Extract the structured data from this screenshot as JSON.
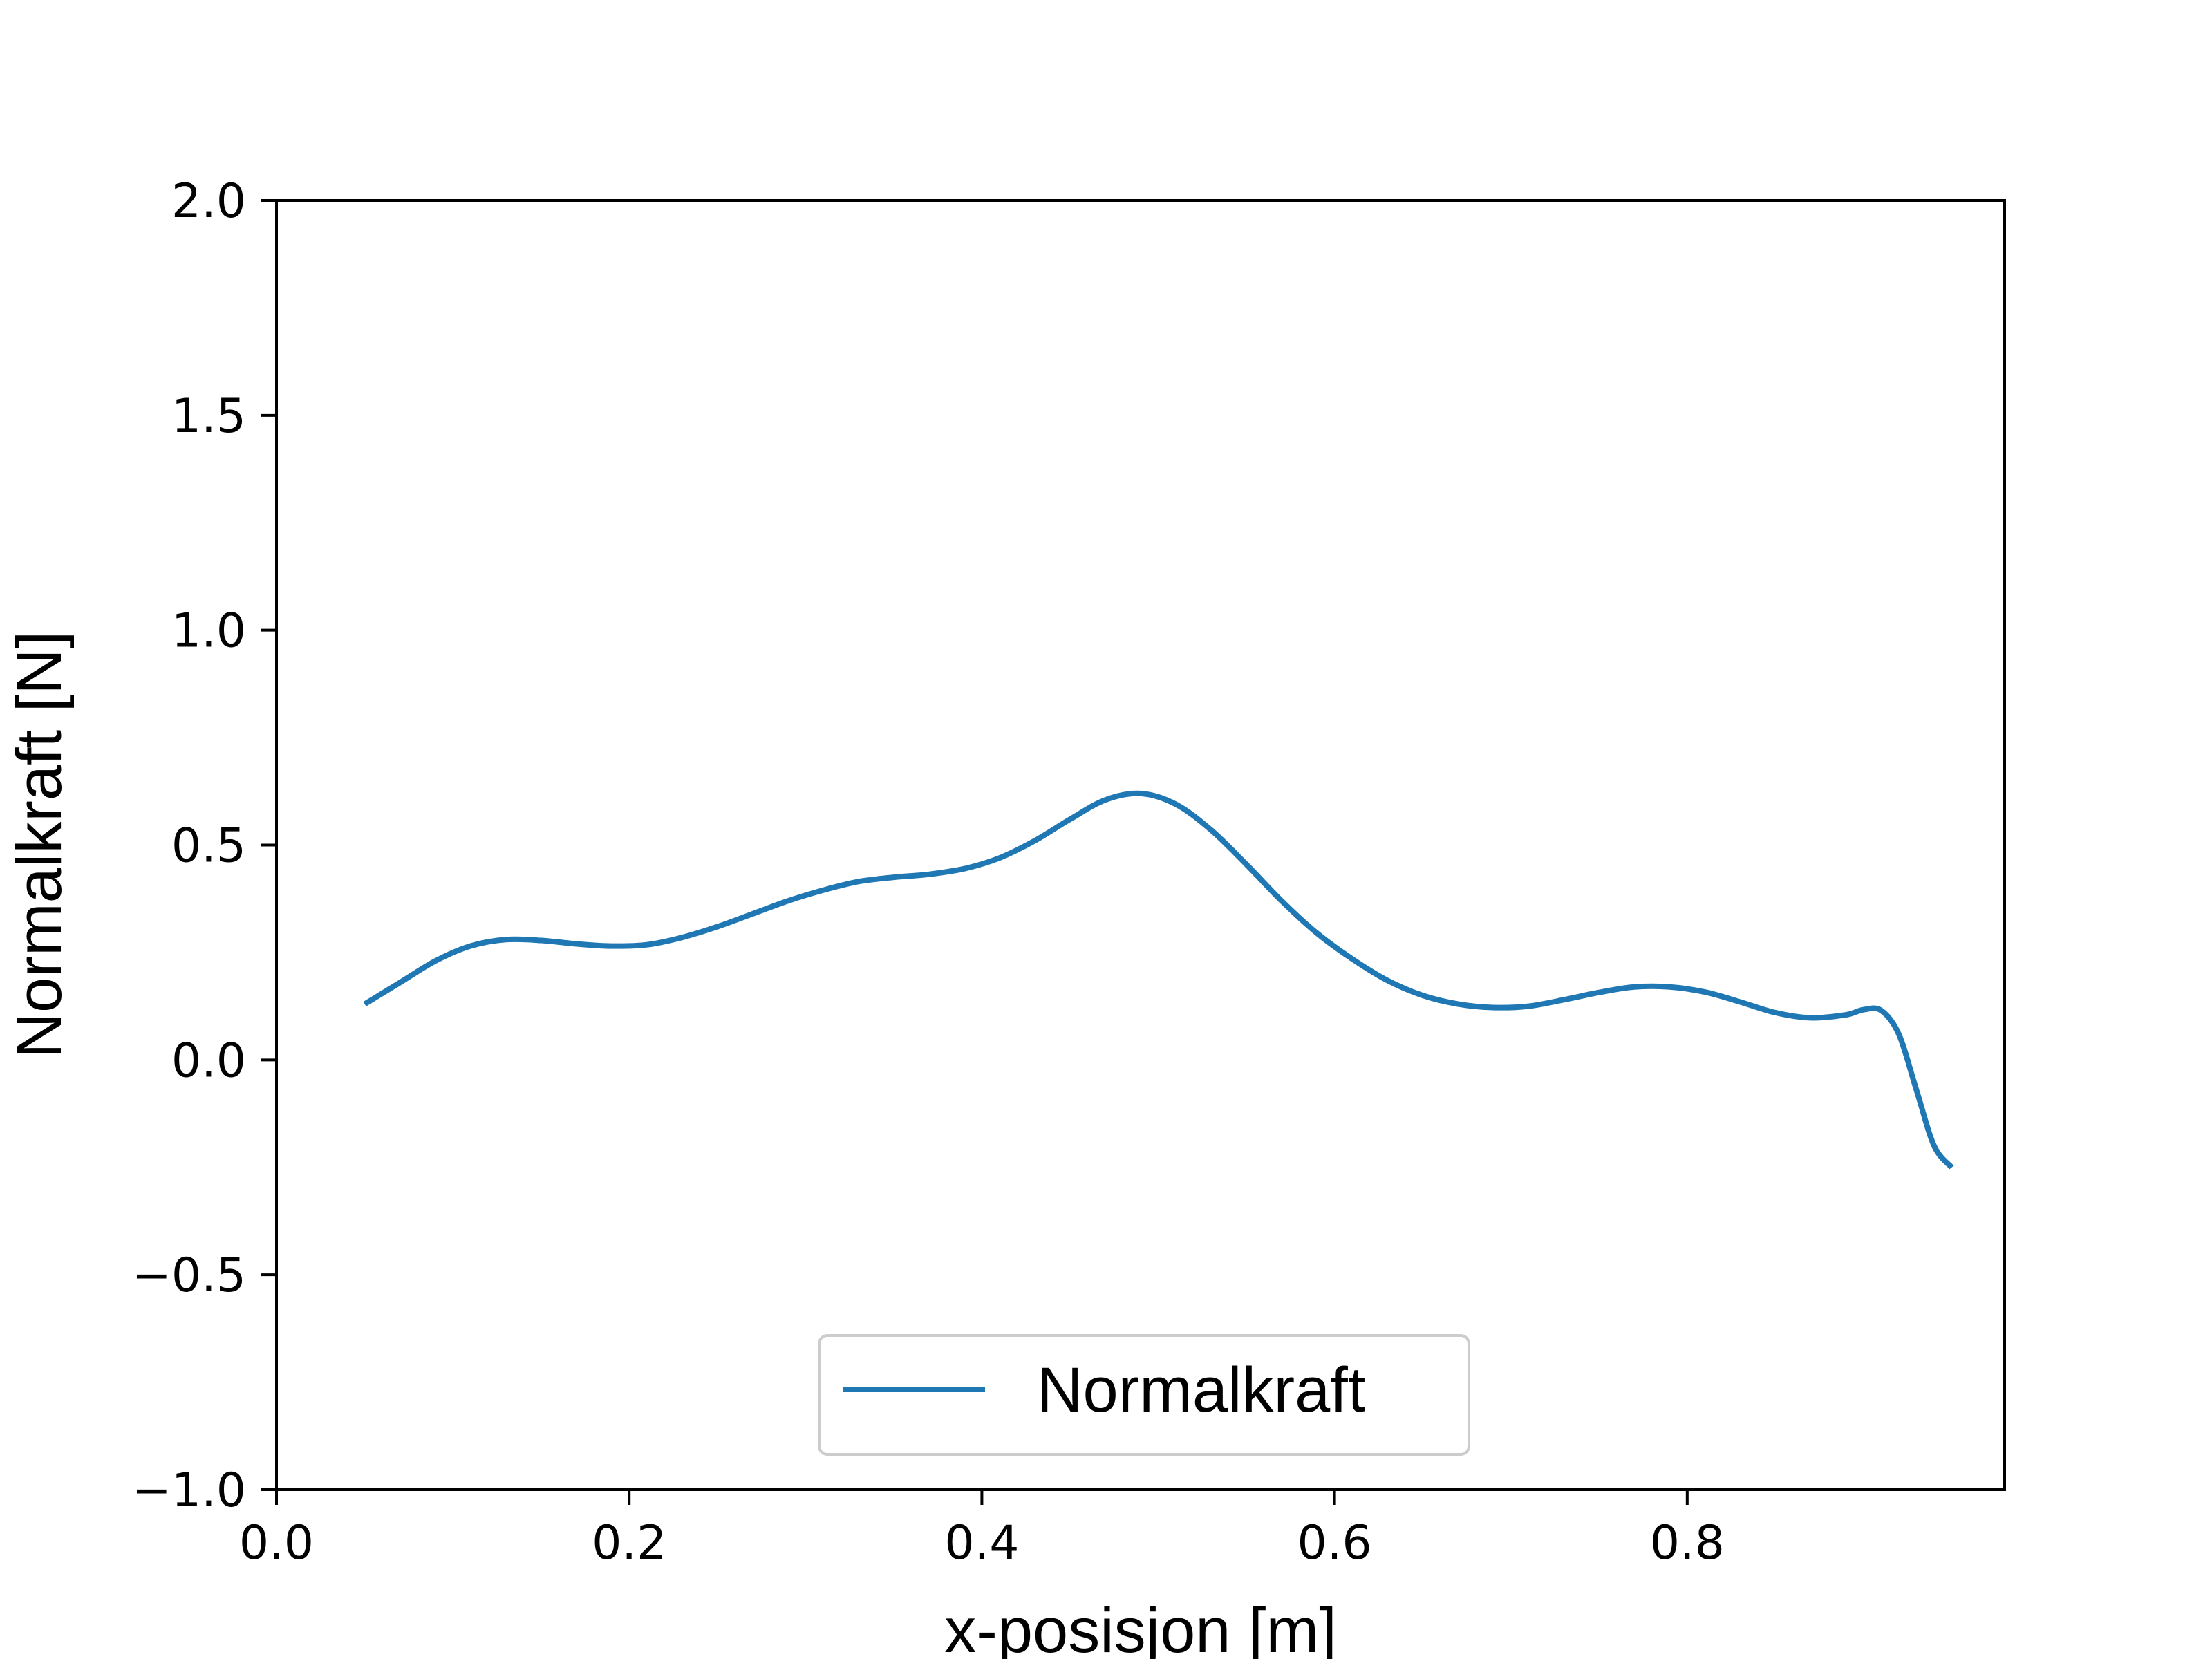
{
  "chart_data": {
    "type": "line",
    "title": "",
    "xlabel": "x-posisjon [m]",
    "ylabel": "Normalkraft [N]",
    "xlim": [
      0.0,
      0.98
    ],
    "ylim": [
      -1.0,
      2.0
    ],
    "x_ticks": [
      "0.0",
      "0.2",
      "0.4",
      "0.6",
      "0.8"
    ],
    "x_tick_values": [
      0.0,
      0.2,
      0.4,
      0.6,
      0.8
    ],
    "y_ticks": [
      "−1.0",
      "−0.5",
      "0.0",
      "0.5",
      "1.0",
      "1.5",
      "2.0"
    ],
    "y_tick_values": [
      -1.0,
      -0.5,
      0.0,
      0.5,
      1.0,
      1.5,
      2.0
    ],
    "grid": false,
    "legend_position": "bottom-center",
    "series": [
      {
        "name": "Normalkraft",
        "color": "#1f77b4",
        "x": [
          0.05,
          0.07,
          0.09,
          0.11,
          0.13,
          0.15,
          0.17,
          0.19,
          0.21,
          0.23,
          0.25,
          0.27,
          0.29,
          0.31,
          0.33,
          0.35,
          0.37,
          0.39,
          0.41,
          0.43,
          0.45,
          0.47,
          0.49,
          0.51,
          0.53,
          0.55,
          0.57,
          0.59,
          0.61,
          0.63,
          0.65,
          0.67,
          0.69,
          0.71,
          0.73,
          0.75,
          0.77,
          0.79,
          0.81,
          0.83,
          0.85,
          0.87,
          0.89,
          0.9,
          0.91,
          0.92,
          0.93,
          0.94,
          0.95
        ],
        "y": [
          0.13,
          0.18,
          0.23,
          0.265,
          0.28,
          0.278,
          0.27,
          0.265,
          0.268,
          0.285,
          0.31,
          0.34,
          0.37,
          0.395,
          0.415,
          0.425,
          0.432,
          0.445,
          0.47,
          0.51,
          0.56,
          0.605,
          0.62,
          0.595,
          0.535,
          0.455,
          0.37,
          0.295,
          0.235,
          0.185,
          0.15,
          0.13,
          0.122,
          0.125,
          0.14,
          0.157,
          0.17,
          0.17,
          0.158,
          0.135,
          0.11,
          0.098,
          0.105,
          0.117,
          0.115,
          0.06,
          -0.07,
          -0.2,
          -0.25
        ]
      }
    ]
  }
}
